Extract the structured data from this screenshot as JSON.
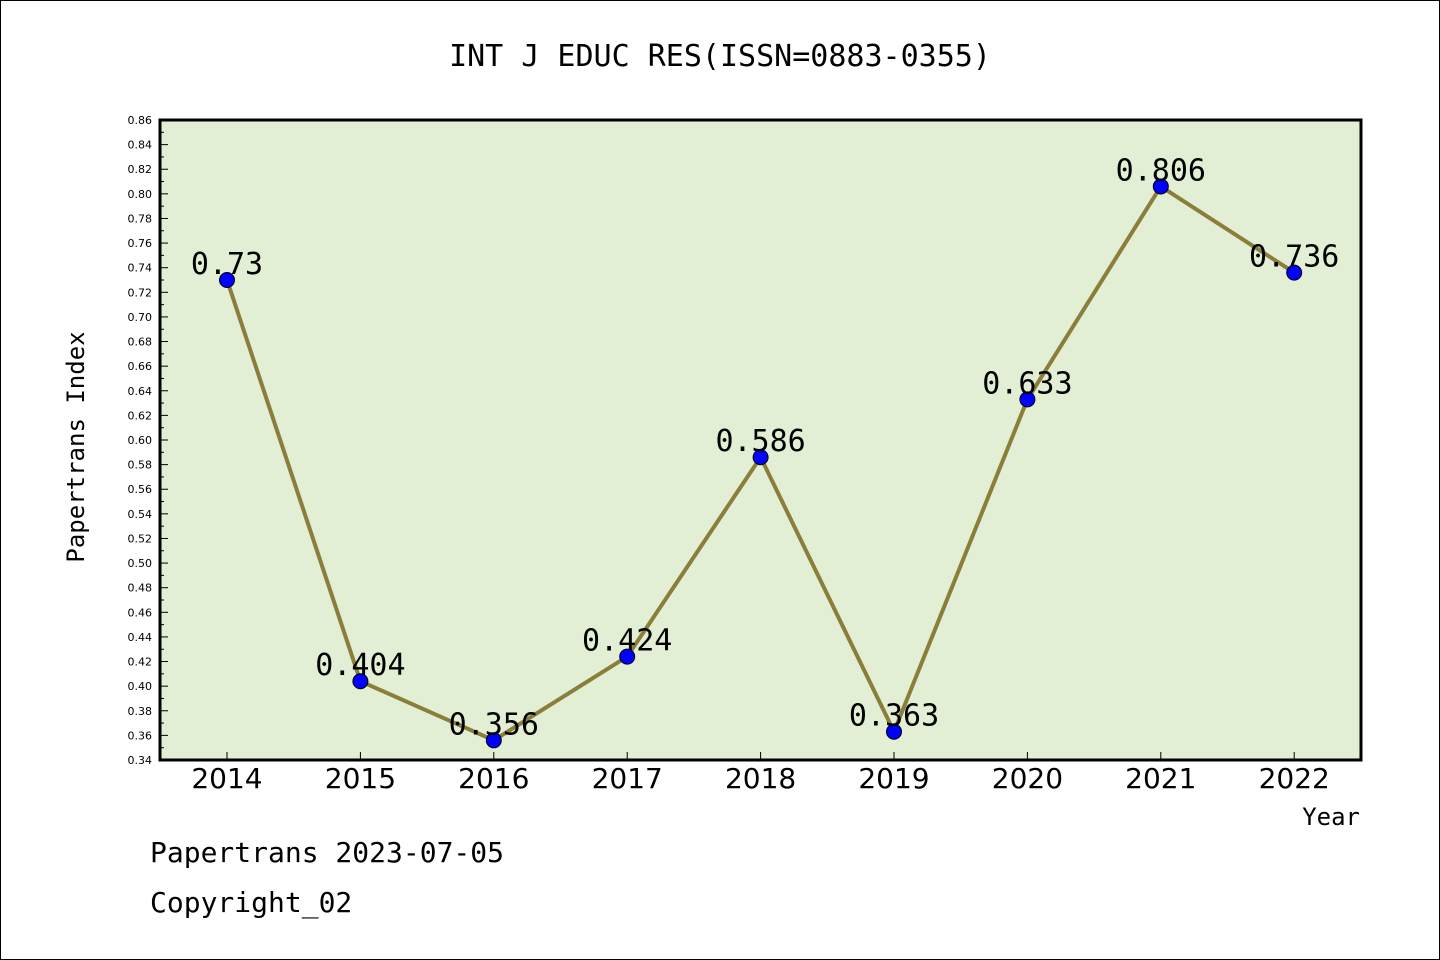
{
  "chart_data": {
    "type": "line",
    "title": "INT J EDUC RES(ISSN=0883-0355)",
    "xlabel": "Year",
    "ylabel": "Papertrans Index",
    "categories": [
      "2014",
      "2015",
      "2016",
      "2017",
      "2018",
      "2019",
      "2020",
      "2021",
      "2022"
    ],
    "series": [
      {
        "values": [
          0.73,
          0.404,
          0.356,
          0.424,
          0.586,
          0.363,
          0.633,
          0.806,
          0.736
        ],
        "labels": [
          "0.73",
          "0.404",
          "0.356",
          "0.424",
          "0.586",
          "0.363",
          "0.633",
          "0.806",
          "0.736"
        ],
        "line_color": "#8b7d3a",
        "marker_color": "#0000ff"
      }
    ],
    "ylim": [
      0.34,
      0.86
    ],
    "yticks": [
      "0.34",
      "0.36",
      "0.38",
      "0.40",
      "0.42",
      "0.44",
      "0.46",
      "0.48",
      "0.50",
      "0.52",
      "0.54",
      "0.56",
      "0.58",
      "0.60",
      "0.62",
      "0.64",
      "0.66",
      "0.68",
      "0.70",
      "0.72",
      "0.74",
      "0.76",
      "0.78",
      "0.80",
      "0.82",
      "0.84",
      "0.86"
    ],
    "grid": false,
    "plot_background": "#e2efd5"
  },
  "footer": {
    "line1": "Papertrans 2023-07-05",
    "line2": "Copyright_02"
  }
}
